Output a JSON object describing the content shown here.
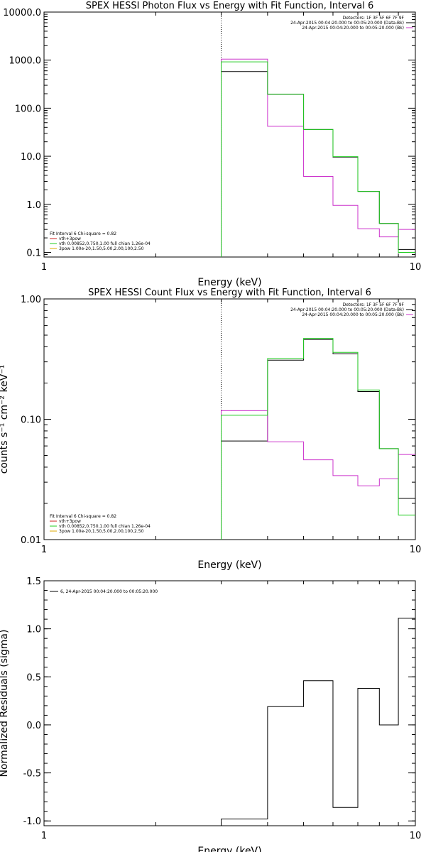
{
  "chart_data": [
    {
      "type": "line",
      "title": "SPEX HESSI Photon Flux vs Energy with Fit Function, Interval 6",
      "xlabel": "Energy (keV)",
      "ylabel": "",
      "xscale": "log",
      "yscale": "log",
      "xlim": [
        1,
        10
      ],
      "ylim": [
        0.08,
        10000
      ],
      "x_ticks": [
        {
          "value": 1,
          "label": "1"
        },
        {
          "value": 10,
          "label": "10"
        }
      ],
      "y_ticks": [
        {
          "value": 10000,
          "label": "10000.0"
        },
        {
          "value": 1000,
          "label": "1000.0"
        },
        {
          "value": 100,
          "label": "100.0"
        },
        {
          "value": 10,
          "label": "10.0"
        },
        {
          "value": 1,
          "label": "1.0"
        },
        {
          "value": 0.1,
          "label": "0.1"
        }
      ],
      "marker_line_x": 3.0,
      "legend_top_right": [
        {
          "text": "Detectors: 1F 3F 5F 6F 7F 9F",
          "color": ""
        },
        {
          "text": "24-Apr-2015 00:04:20.000 to 00:05:20.000 (Data-Bk)",
          "color": "#000000"
        },
        {
          "text": "24-Apr-2015 00:04:20.000 to 00:05:20.000 (Bk)",
          "color": "#cc33cc"
        }
      ],
      "legend_bottom_left": [
        {
          "text": "Fit Interval 6   Chi-square = 0.82",
          "color": ""
        },
        {
          "text": "vth+3pow",
          "color": "#cc2222"
        },
        {
          "text": "vth 0.00852,0.750,1.00  full chian 1.26e-04",
          "color": "#22cc22"
        },
        {
          "text": "3pow 1.00e-20,1.50,5.00,2.00,100,2.50",
          "color": "#ddaa00"
        }
      ],
      "series": [
        {
          "color": "#000000",
          "edges": [
            3.0,
            4.0,
            5.0,
            6.0,
            7.0,
            8.0,
            9.0,
            10.0
          ],
          "values": [
            580,
            195,
            36,
            9.6,
            1.85,
            0.4,
            0.115
          ]
        },
        {
          "color": "#cc33cc",
          "edges": [
            3.0,
            4.0,
            5.0,
            6.0,
            7.0,
            8.0,
            9.0,
            10.0
          ],
          "values": [
            1050,
            42,
            3.8,
            0.95,
            0.31,
            0.21,
            0.3
          ]
        },
        {
          "color": "#22cc22",
          "edges": [
            3.0,
            4.0,
            5.0,
            6.0,
            7.0,
            8.0,
            9.0,
            10.0
          ],
          "values": [
            920,
            195,
            36,
            9.8,
            1.85,
            0.4,
            0.1
          ]
        }
      ]
    },
    {
      "type": "line",
      "title": "SPEX HESSI Count Flux vs Energy with Fit Function, Interval 6",
      "xlabel": "Energy (keV)",
      "ylabel": "counts s⁻¹ cm⁻² keV⁻¹",
      "xscale": "log",
      "yscale": "log",
      "xlim": [
        1,
        10
      ],
      "ylim": [
        0.01,
        1.0
      ],
      "x_ticks": [
        {
          "value": 1,
          "label": "1"
        },
        {
          "value": 10,
          "label": "10"
        }
      ],
      "y_ticks": [
        {
          "value": 1.0,
          "label": "1.00"
        },
        {
          "value": 0.1,
          "label": "0.10"
        },
        {
          "value": 0.01,
          "label": "0.01"
        }
      ],
      "marker_line_x": 3.0,
      "legend_top_right": [
        {
          "text": "Detectors: 1F 3F 5F 6F 7F 9F",
          "color": ""
        },
        {
          "text": "24-Apr-2015 00:04:20.000 to 00:05:20.000 (Data-Bk)",
          "color": "#000000"
        },
        {
          "text": "24-Apr-2015 00:04:20.000 to 00:05:20.000 (Bk)",
          "color": "#cc33cc"
        }
      ],
      "legend_bottom_left": [
        {
          "text": "Fit Interval 6   Chi-square = 0.82",
          "color": ""
        },
        {
          "text": "vth+3pow",
          "color": "#cc2222"
        },
        {
          "text": "vth 0.00852,0.750,1.00  full chian 1.26e-04",
          "color": "#22cc22"
        },
        {
          "text": "3pow 1.00e-20,1.50,5.00,2.00,100,2.50",
          "color": "#ddaa00"
        }
      ],
      "series": [
        {
          "color": "#000000",
          "edges": [
            3.0,
            4.0,
            5.0,
            6.0,
            7.0,
            8.0,
            9.0,
            10.0
          ],
          "values": [
            0.066,
            0.31,
            0.46,
            0.35,
            0.17,
            0.057,
            0.022
          ]
        },
        {
          "color": "#cc33cc",
          "edges": [
            3.0,
            4.0,
            5.0,
            6.0,
            7.0,
            8.0,
            9.0,
            10.0
          ],
          "values": [
            0.118,
            0.065,
            0.046,
            0.034,
            0.028,
            0.032,
            0.051
          ]
        },
        {
          "color": "#22cc22",
          "edges": [
            3.0,
            4.0,
            5.0,
            6.0,
            7.0,
            8.0,
            9.0,
            10.0
          ],
          "values": [
            0.108,
            0.32,
            0.47,
            0.36,
            0.175,
            0.057,
            0.016
          ]
        }
      ]
    },
    {
      "type": "line",
      "title": "",
      "xlabel": "Energy (keV)",
      "ylabel": "Normalized Residuals (sigma)",
      "xscale": "log",
      "yscale": "linear",
      "xlim": [
        1,
        10
      ],
      "ylim": [
        -1.05,
        1.5
      ],
      "x_ticks": [
        {
          "value": 1,
          "label": "1"
        },
        {
          "value": 10,
          "label": "10"
        }
      ],
      "y_ticks": [
        {
          "value": 1.5,
          "label": "1.5"
        },
        {
          "value": 1.0,
          "label": "1.0"
        },
        {
          "value": 0.5,
          "label": "0.5"
        },
        {
          "value": 0.0,
          "label": "0.0"
        },
        {
          "value": -0.5,
          "label": "-0.5"
        },
        {
          "value": -1.0,
          "label": "-1.0"
        }
      ],
      "legend_top_left": [
        {
          "text": "6, 24-Apr-2015 00:04:20.000 to 00:05:20.000",
          "color": "#000000"
        }
      ],
      "series": [
        {
          "color": "#000000",
          "edges": [
            3.0,
            4.0,
            5.0,
            6.0,
            7.0,
            8.0,
            9.0,
            10.0
          ],
          "values": [
            -0.98,
            0.19,
            0.46,
            -0.86,
            0.38,
            0.0,
            1.11
          ]
        }
      ]
    }
  ]
}
